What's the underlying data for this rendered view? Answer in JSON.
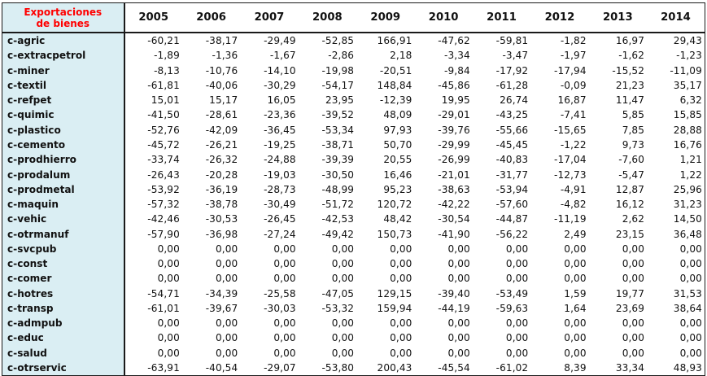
{
  "table": {
    "corner_label_line1": "Exportaciones",
    "corner_label_line2": "de bienes",
    "years": [
      "2005",
      "2006",
      "2007",
      "2008",
      "2009",
      "2010",
      "2011",
      "2012",
      "2013",
      "2014"
    ],
    "rows": [
      {
        "label": "c-agric",
        "values": [
          "-60,21",
          "-38,17",
          "-29,49",
          "-52,85",
          "166,91",
          "-47,62",
          "-59,81",
          "-1,82",
          "16,97",
          "29,43"
        ]
      },
      {
        "label": "c-extracpetrol",
        "values": [
          "-1,89",
          "-1,36",
          "-1,67",
          "-2,86",
          "2,18",
          "-3,34",
          "-3,47",
          "-1,97",
          "-1,62",
          "-1,23"
        ]
      },
      {
        "label": "c-miner",
        "values": [
          "-8,13",
          "-10,76",
          "-14,10",
          "-19,98",
          "-20,51",
          "-9,84",
          "-17,92",
          "-17,94",
          "-15,52",
          "-11,09"
        ]
      },
      {
        "label": "c-textil",
        "values": [
          "-61,81",
          "-40,06",
          "-30,29",
          "-54,17",
          "148,84",
          "-45,86",
          "-61,28",
          "-0,09",
          "21,23",
          "35,17"
        ]
      },
      {
        "label": "c-refpet",
        "values": [
          "15,01",
          "15,17",
          "16,05",
          "23,95",
          "-12,39",
          "19,95",
          "26,74",
          "16,87",
          "11,47",
          "6,32"
        ]
      },
      {
        "label": "c-quimic",
        "values": [
          "-41,50",
          "-28,61",
          "-23,36",
          "-39,52",
          "48,09",
          "-29,01",
          "-43,25",
          "-7,41",
          "5,85",
          "15,85"
        ]
      },
      {
        "label": "c-plastico",
        "values": [
          "-52,76",
          "-42,09",
          "-36,45",
          "-53,34",
          "97,93",
          "-39,76",
          "-55,66",
          "-15,65",
          "7,85",
          "28,88"
        ]
      },
      {
        "label": "c-cemento",
        "values": [
          "-45,72",
          "-26,21",
          "-19,25",
          "-38,71",
          "50,70",
          "-29,99",
          "-45,45",
          "-1,22",
          "9,73",
          "16,76"
        ]
      },
      {
        "label": "c-prodhierro",
        "values": [
          "-33,74",
          "-26,32",
          "-24,88",
          "-39,39",
          "20,55",
          "-26,99",
          "-40,83",
          "-17,04",
          "-7,60",
          "1,21"
        ]
      },
      {
        "label": "c-prodalum",
        "values": [
          "-26,43",
          "-20,28",
          "-19,03",
          "-30,50",
          "16,46",
          "-21,01",
          "-31,77",
          "-12,73",
          "-5,47",
          "1,22"
        ]
      },
      {
        "label": "c-prodmetal",
        "values": [
          "-53,92",
          "-36,19",
          "-28,73",
          "-48,99",
          "95,23",
          "-38,63",
          "-53,94",
          "-4,91",
          "12,87",
          "25,96"
        ]
      },
      {
        "label": "c-maquin",
        "values": [
          "-57,32",
          "-38,78",
          "-30,49",
          "-51,72",
          "120,72",
          "-42,22",
          "-57,60",
          "-4,82",
          "16,12",
          "31,23"
        ]
      },
      {
        "label": "c-vehic",
        "values": [
          "-42,46",
          "-30,53",
          "-26,45",
          "-42,53",
          "48,42",
          "-30,54",
          "-44,87",
          "-11,19",
          "2,62",
          "14,50"
        ]
      },
      {
        "label": "c-otrmanuf",
        "values": [
          "-57,90",
          "-36,98",
          "-27,24",
          "-49,42",
          "150,73",
          "-41,90",
          "-56,22",
          "2,49",
          "23,15",
          "36,48"
        ]
      },
      {
        "label": "c-svcpub",
        "values": [
          "0,00",
          "0,00",
          "0,00",
          "0,00",
          "0,00",
          "0,00",
          "0,00",
          "0,00",
          "0,00",
          "0,00"
        ]
      },
      {
        "label": "c-const",
        "values": [
          "0,00",
          "0,00",
          "0,00",
          "0,00",
          "0,00",
          "0,00",
          "0,00",
          "0,00",
          "0,00",
          "0,00"
        ]
      },
      {
        "label": "c-comer",
        "values": [
          "0,00",
          "0,00",
          "0,00",
          "0,00",
          "0,00",
          "0,00",
          "0,00",
          "0,00",
          "0,00",
          "0,00"
        ]
      },
      {
        "label": "c-hotres",
        "values": [
          "-54,71",
          "-34,39",
          "-25,58",
          "-47,05",
          "129,15",
          "-39,40",
          "-53,49",
          "1,59",
          "19,77",
          "31,53"
        ]
      },
      {
        "label": "c-transp",
        "values": [
          "-61,01",
          "-39,67",
          "-30,03",
          "-53,32",
          "159,94",
          "-44,19",
          "-59,63",
          "1,64",
          "23,69",
          "38,64"
        ]
      },
      {
        "label": "c-admpub",
        "values": [
          "0,00",
          "0,00",
          "0,00",
          "0,00",
          "0,00",
          "0,00",
          "0,00",
          "0,00",
          "0,00",
          "0,00"
        ]
      },
      {
        "label": "c-educ",
        "values": [
          "0,00",
          "0,00",
          "0,00",
          "0,00",
          "0,00",
          "0,00",
          "0,00",
          "0,00",
          "0,00",
          "0,00"
        ]
      },
      {
        "label": "c-salud",
        "values": [
          "0,00",
          "0,00",
          "0,00",
          "0,00",
          "0,00",
          "0,00",
          "0,00",
          "0,00",
          "0,00",
          "0,00"
        ]
      },
      {
        "label": "c-otrservic",
        "values": [
          "-63,91",
          "-40,54",
          "-29,07",
          "-53,80",
          "200,43",
          "-45,54",
          "-61,02",
          "8,39",
          "33,34",
          "48,93"
        ]
      }
    ]
  },
  "colors": {
    "corner_text": "#ff0000",
    "label_background": "#daeef3",
    "text": "#111111",
    "border": "#1a1a1a"
  }
}
